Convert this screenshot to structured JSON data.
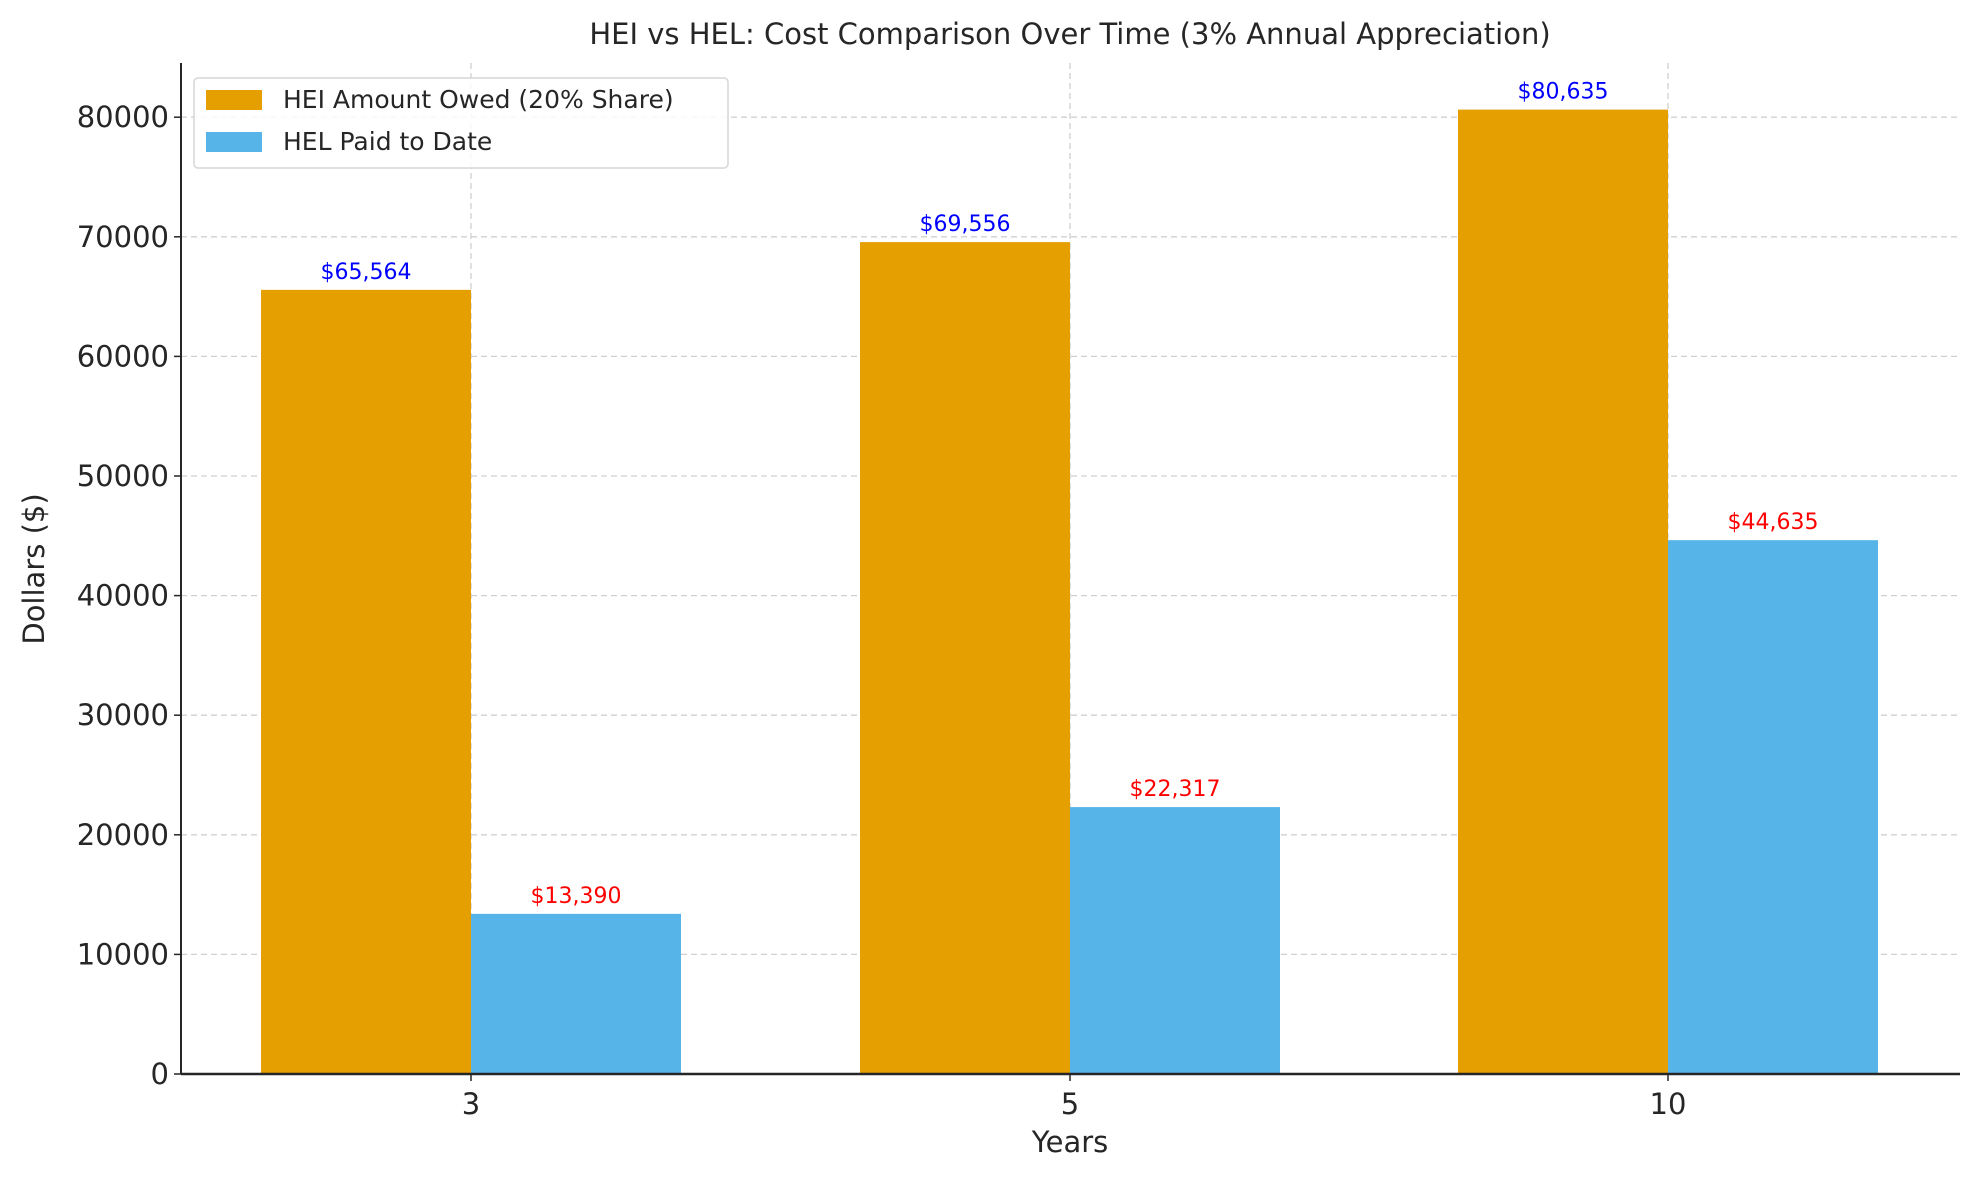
{
  "chart_data": {
    "type": "bar",
    "title": "HEI vs HEL: Cost Comparison Over Time (3% Annual Appreciation)",
    "xlabel": "Years",
    "ylabel": "Dollars ($)",
    "categories": [
      "3",
      "5",
      "10"
    ],
    "ylim": [
      0,
      84500
    ],
    "yticks": [
      0,
      10000,
      20000,
      30000,
      40000,
      50000,
      60000,
      70000,
      80000
    ],
    "grid": true,
    "legend_position": "top-left",
    "series": [
      {
        "name": "HEI Amount Owed (20% Share)",
        "values": [
          65564,
          69556,
          80635
        ],
        "labels": [
          "$65,564",
          "$69,556",
          "$80,635"
        ],
        "color": "#E69F00",
        "label_color": "#0000FF"
      },
      {
        "name": "HEL Paid to Date",
        "values": [
          13390,
          22317,
          44635
        ],
        "labels": [
          "$13,390",
          "$22,317",
          "$44,635"
        ],
        "color": "#56B4E9",
        "label_color": "#FF0000"
      }
    ]
  }
}
